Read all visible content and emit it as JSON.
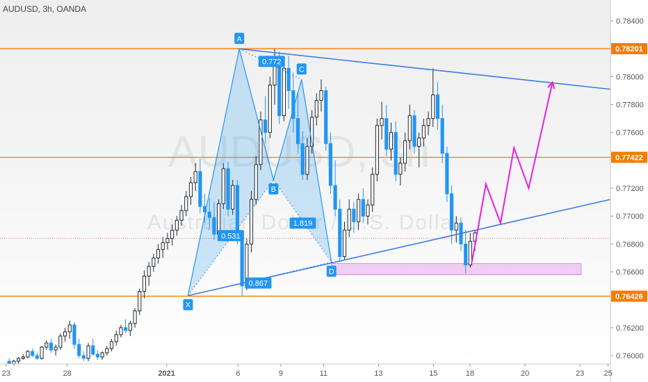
{
  "header": {
    "symbol": "AUDUSD, 3h, OANDA"
  },
  "watermark": {
    "main": "AUDUSD, 3h",
    "sub": "Australian Dollar / U.S. Dollar"
  },
  "colors": {
    "up": "#1f2730",
    "down": "#2196f3",
    "level": "#f57c00",
    "trend": "#3d7be0",
    "pattern": "#2196f3",
    "projection": "#e91ee4",
    "zone": "#e9a7ec",
    "current": "#e86b6b"
  },
  "chart_data": {
    "type": "candlestick",
    "title": "AUDUSD, 3h, OANDA",
    "ylim": [
      0.7594,
      0.7855
    ],
    "xlim": [
      0,
      100
    ],
    "y_ticks": [
      "0.78400",
      "0.78000",
      "0.77800",
      "0.77600",
      "0.77200",
      "0.77000",
      "0.76800",
      "0.76600",
      "0.76200",
      "0.76000"
    ],
    "x_ticks": [
      {
        "label": "23",
        "x": 1
      },
      {
        "label": "28",
        "x": 11
      },
      {
        "label": "2021",
        "x": 27.3
      },
      {
        "label": "6",
        "x": 39
      },
      {
        "label": "9",
        "x": 46
      },
      {
        "label": "11",
        "x": 53
      },
      {
        "label": "13",
        "x": 62
      },
      {
        "label": "15",
        "x": 71
      },
      {
        "label": "18",
        "x": 77
      },
      {
        "label": "20",
        "x": 86
      },
      {
        "label": "23",
        "x": 95
      },
      {
        "label": "25",
        "x": 99.6
      }
    ],
    "levels": [
      {
        "label": "0.78201",
        "y": 0.78201
      },
      {
        "label": "0.77422",
        "y": 0.77422
      },
      {
        "label": "0.76426",
        "y": 0.76426
      }
    ],
    "current_price": 0.7684,
    "trendlines": [
      {
        "x1": 39.2,
        "y1": 0.782,
        "x2": 100,
        "y2": 0.7791
      },
      {
        "x1": 30.8,
        "y1": 0.7643,
        "x2": 100,
        "y2": 0.7712
      }
    ],
    "harmonic": {
      "points": [
        {
          "label": "X",
          "x": 30.8,
          "y": 0.7643
        },
        {
          "label": "A",
          "x": 39.2,
          "y": 0.782
        },
        {
          "label": "B",
          "x": 44.8,
          "y": 0.7726
        },
        {
          "label": "C",
          "x": 49.4,
          "y": 0.7798
        },
        {
          "label": "D",
          "x": 54.3,
          "y": 0.7667
        }
      ],
      "ratios": [
        {
          "label": "0.772",
          "x": 44.5,
          "y": 0.7811
        },
        {
          "label": "0.531",
          "x": 37.8,
          "y": 0.7686
        },
        {
          "label": "1.819",
          "x": 49.6,
          "y": 0.7695
        },
        {
          "label": "0.867",
          "x": 42.3,
          "y": 0.7652
        }
      ]
    },
    "zone": {
      "x1": 54.3,
      "x2": 95.2,
      "y1": 0.7658,
      "y2": 0.7666
    },
    "projection": [
      {
        "x": 77.3,
        "y": 0.7667
      },
      {
        "x": 79.6,
        "y": 0.7723
      },
      {
        "x": 82.0,
        "y": 0.7695
      },
      {
        "x": 84.2,
        "y": 0.7749
      },
      {
        "x": 86.6,
        "y": 0.772
      },
      {
        "x": 90.5,
        "y": 0.7796
      }
    ],
    "ohlc": [
      [
        0.7596,
        0.7598,
        0.7594,
        0.7594
      ],
      [
        0.7594,
        0.7597,
        0.7593,
        0.7596
      ],
      [
        0.7596,
        0.7599,
        0.7594,
        0.7598
      ],
      [
        0.7598,
        0.7601,
        0.7597,
        0.7599
      ],
      [
        0.7599,
        0.7604,
        0.7598,
        0.7603
      ],
      [
        0.7603,
        0.7605,
        0.7599,
        0.76
      ],
      [
        0.76,
        0.7602,
        0.7597,
        0.7598
      ],
      [
        0.7598,
        0.7607,
        0.7597,
        0.7606
      ],
      [
        0.7606,
        0.7611,
        0.7604,
        0.7609
      ],
      [
        0.7609,
        0.7612,
        0.7602,
        0.7604
      ],
      [
        0.7604,
        0.7608,
        0.76,
        0.7606
      ],
      [
        0.7606,
        0.7616,
        0.7604,
        0.7614
      ],
      [
        0.7614,
        0.762,
        0.761,
        0.7617
      ],
      [
        0.7617,
        0.7625,
        0.7612,
        0.7622
      ],
      [
        0.7622,
        0.7624,
        0.7605,
        0.7608
      ],
      [
        0.7608,
        0.7612,
        0.7598,
        0.76
      ],
      [
        0.76,
        0.7603,
        0.7596,
        0.7598
      ],
      [
        0.7598,
        0.7609,
        0.7596,
        0.7607
      ],
      [
        0.7607,
        0.7612,
        0.76,
        0.7601
      ],
      [
        0.7601,
        0.7604,
        0.7597,
        0.7599
      ],
      [
        0.7599,
        0.7603,
        0.7597,
        0.7602
      ],
      [
        0.7602,
        0.7607,
        0.76,
        0.7605
      ],
      [
        0.7605,
        0.7612,
        0.7603,
        0.761
      ],
      [
        0.761,
        0.7618,
        0.7607,
        0.7615
      ],
      [
        0.7615,
        0.7622,
        0.7613,
        0.762
      ],
      [
        0.762,
        0.7626,
        0.7616,
        0.7618
      ],
      [
        0.7618,
        0.7625,
        0.7614,
        0.7623
      ],
      [
        0.7623,
        0.7634,
        0.762,
        0.7632
      ],
      [
        0.7632,
        0.7648,
        0.7629,
        0.7646
      ],
      [
        0.7646,
        0.7661,
        0.7641,
        0.7657
      ],
      [
        0.7657,
        0.7667,
        0.765,
        0.7664
      ],
      [
        0.7664,
        0.7673,
        0.766,
        0.767
      ],
      [
        0.767,
        0.768,
        0.7666,
        0.7676
      ],
      [
        0.7676,
        0.7685,
        0.767,
        0.7681
      ],
      [
        0.7681,
        0.7688,
        0.7676,
        0.7684
      ],
      [
        0.7684,
        0.7694,
        0.7679,
        0.769
      ],
      [
        0.769,
        0.77,
        0.7686,
        0.7697
      ],
      [
        0.7697,
        0.7708,
        0.7693,
        0.7704
      ],
      [
        0.7704,
        0.7718,
        0.77,
        0.7714
      ],
      [
        0.7714,
        0.7728,
        0.7708,
        0.7724
      ],
      [
        0.7724,
        0.7738,
        0.7718,
        0.7732
      ],
      [
        0.7732,
        0.7741,
        0.7702,
        0.7707
      ],
      [
        0.7707,
        0.7716,
        0.7695,
        0.7703
      ],
      [
        0.7703,
        0.7713,
        0.769,
        0.7699
      ],
      [
        0.7699,
        0.771,
        0.7683,
        0.7687
      ],
      [
        0.7687,
        0.7712,
        0.7684,
        0.7709
      ],
      [
        0.7709,
        0.7738,
        0.7705,
        0.7734
      ],
      [
        0.7734,
        0.7739,
        0.77,
        0.7705
      ],
      [
        0.7705,
        0.7726,
        0.7701,
        0.7722
      ],
      [
        0.7722,
        0.7726,
        0.768,
        0.7684
      ],
      [
        0.7684,
        0.769,
        0.7643,
        0.765
      ],
      [
        0.765,
        0.7684,
        0.7647,
        0.768
      ],
      [
        0.768,
        0.7718,
        0.7674,
        0.7712
      ],
      [
        0.7712,
        0.7743,
        0.7708,
        0.7737
      ],
      [
        0.7737,
        0.7775,
        0.7733,
        0.7769
      ],
      [
        0.7769,
        0.7786,
        0.7752,
        0.776
      ],
      [
        0.776,
        0.78,
        0.7756,
        0.7794
      ],
      [
        0.7794,
        0.782,
        0.778,
        0.7812
      ],
      [
        0.7812,
        0.7818,
        0.7766,
        0.7772
      ],
      [
        0.7772,
        0.7812,
        0.7768,
        0.7806
      ],
      [
        0.7806,
        0.7815,
        0.7777,
        0.779
      ],
      [
        0.779,
        0.7803,
        0.776,
        0.777
      ],
      [
        0.777,
        0.7789,
        0.7745,
        0.7752
      ],
      [
        0.7752,
        0.7761,
        0.7726,
        0.773
      ],
      [
        0.773,
        0.7756,
        0.7726,
        0.775
      ],
      [
        0.775,
        0.7776,
        0.7745,
        0.7771
      ],
      [
        0.7771,
        0.7788,
        0.7765,
        0.7783
      ],
      [
        0.7783,
        0.7798,
        0.7775,
        0.779
      ],
      [
        0.779,
        0.7793,
        0.7747,
        0.7752
      ],
      [
        0.7752,
        0.776,
        0.7716,
        0.7722
      ],
      [
        0.7722,
        0.774,
        0.77,
        0.7705
      ],
      [
        0.7705,
        0.7712,
        0.7667,
        0.7671
      ],
      [
        0.7671,
        0.7696,
        0.7669,
        0.769
      ],
      [
        0.769,
        0.7712,
        0.7685,
        0.7705
      ],
      [
        0.7705,
        0.771,
        0.7688,
        0.7696
      ],
      [
        0.7696,
        0.7716,
        0.769,
        0.7712
      ],
      [
        0.7712,
        0.772,
        0.7695,
        0.77
      ],
      [
        0.77,
        0.7712,
        0.7694,
        0.7708
      ],
      [
        0.7708,
        0.7735,
        0.7703,
        0.773
      ],
      [
        0.773,
        0.777,
        0.7725,
        0.7765
      ],
      [
        0.7765,
        0.7782,
        0.7755,
        0.777
      ],
      [
        0.777,
        0.778,
        0.7743,
        0.7748
      ],
      [
        0.7748,
        0.7767,
        0.774,
        0.776
      ],
      [
        0.776,
        0.7768,
        0.7725,
        0.773
      ],
      [
        0.773,
        0.7742,
        0.7722,
        0.7738
      ],
      [
        0.7738,
        0.776,
        0.7732,
        0.7754
      ],
      [
        0.7754,
        0.778,
        0.7748,
        0.7772
      ],
      [
        0.7772,
        0.7776,
        0.7745,
        0.775
      ],
      [
        0.775,
        0.776,
        0.7735,
        0.7756
      ],
      [
        0.7756,
        0.777,
        0.775,
        0.7765
      ],
      [
        0.7765,
        0.7775,
        0.7758,
        0.777
      ],
      [
        0.777,
        0.7806,
        0.7764,
        0.7787
      ],
      [
        0.7787,
        0.7796,
        0.7762,
        0.777
      ],
      [
        0.777,
        0.778,
        0.7738,
        0.7745
      ],
      [
        0.7745,
        0.775,
        0.771,
        0.7716
      ],
      [
        0.7716,
        0.7722,
        0.768,
        0.769
      ],
      [
        0.769,
        0.77,
        0.7681,
        0.7695
      ],
      [
        0.7695,
        0.7699,
        0.7675,
        0.768
      ],
      [
        0.768,
        0.769,
        0.7659,
        0.7665
      ],
      [
        0.7665,
        0.7688,
        0.7663,
        0.7682
      ],
      [
        0.7682,
        0.769,
        0.7675,
        0.7688
      ]
    ]
  }
}
